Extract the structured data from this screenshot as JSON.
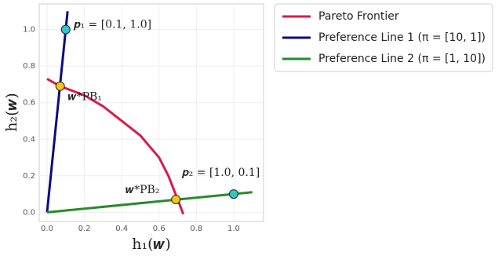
{
  "chart_data": {
    "type": "line",
    "xlabel": "h₁(𝒘)",
    "ylabel": "h₂(𝒘)",
    "xlim": [
      -0.042,
      1.16
    ],
    "ylim": [
      -0.05,
      1.14
    ],
    "xticks": [
      {
        "value": 0,
        "label": "0.0"
      },
      0.2,
      0.4,
      0.6,
      0.8,
      {
        "value": 1,
        "label": "1.0"
      }
    ],
    "yticks": [
      {
        "value": 0,
        "label": "0.0"
      },
      0.2,
      0.4,
      0.6,
      0.8,
      {
        "value": 1,
        "label": "1.0"
      }
    ],
    "grid": true,
    "legend": "outside-right",
    "series": [
      {
        "name": "Pareto Frontier",
        "color": "#d81b4a",
        "x": [
          0,
          0.07,
          0.2,
          0.3,
          0.4,
          0.5,
          0.6,
          0.65,
          0.7,
          0.73
        ],
        "values": [
          0.73,
          0.69,
          0.64,
          0.58,
          0.5,
          0.42,
          0.3,
          0.2,
          0.07,
          -0.01
        ]
      },
      {
        "name": "Preference Line 1 (π = [10, 1])",
        "color": "#0b0b82",
        "x": [
          0,
          0.11
        ],
        "values": [
          0,
          1.1
        ]
      },
      {
        "name": "Preference Line 2 (π = [1, 10])",
        "color": "#2a8a2a",
        "x": [
          0,
          1.1
        ],
        "values": [
          0,
          0.11
        ]
      }
    ],
    "points": [
      {
        "x": 0.1,
        "y": 1.0,
        "label": "𝒑₁ = [0.1, 1.0]",
        "color": "#33c6c6"
      },
      {
        "x": 1.0,
        "y": 0.1,
        "label": "𝒑₂ = [1.0, 0.1]",
        "color": "#33c6c6"
      },
      {
        "x": 0.07,
        "y": 0.69,
        "label": "𝒘*PB₁",
        "color": "#f5c518"
      },
      {
        "x": 0.69,
        "y": 0.07,
        "label": "𝒘*PB₂",
        "color": "#f5c518"
      }
    ]
  }
}
